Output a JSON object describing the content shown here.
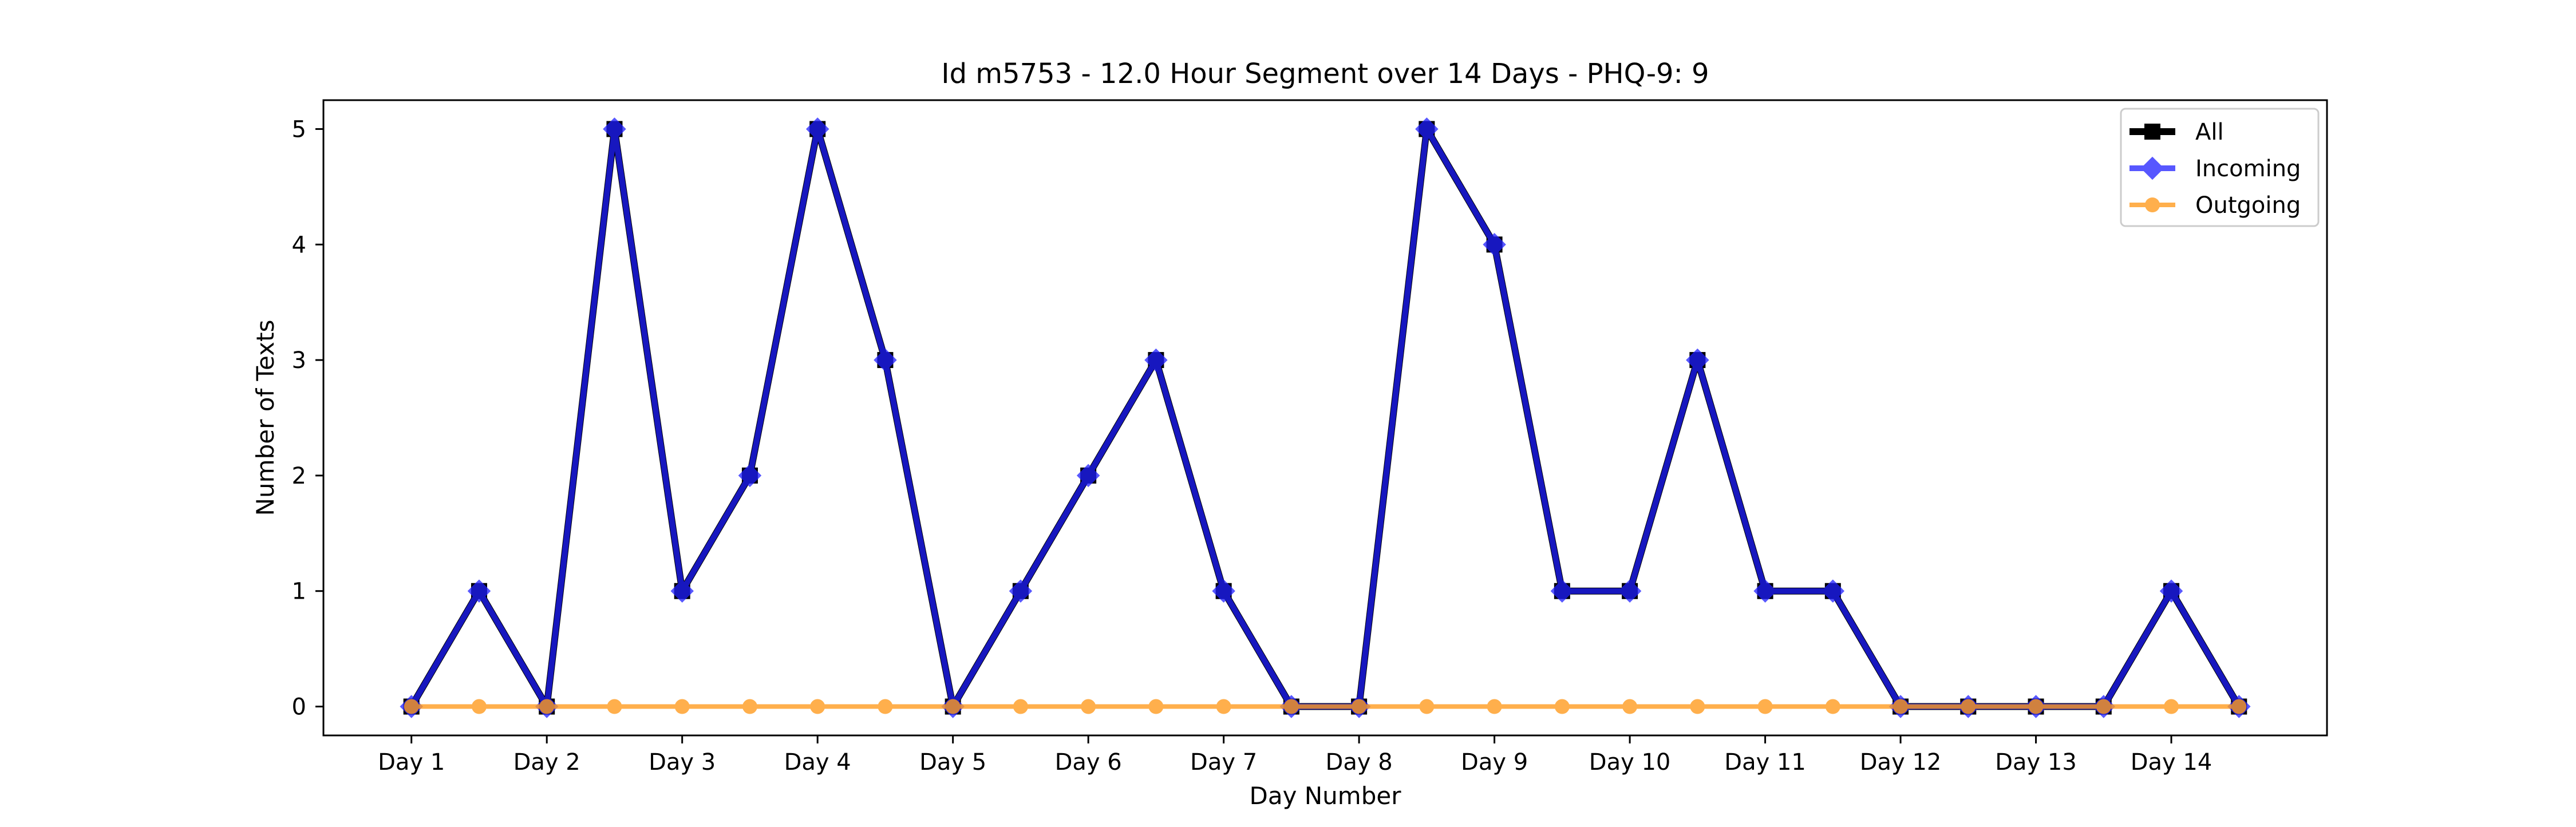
{
  "chart_data": {
    "type": "line",
    "title": "Id m5753 - 12.0 Hour Segment over 14 Days - PHQ-9: 9",
    "xlabel": "Day Number",
    "ylabel": "Number of Texts",
    "categories": [
      "Day 1",
      "Day 2",
      "Day 3",
      "Day 4",
      "Day 5",
      "Day 6",
      "Day 7",
      "Day 8",
      "Day 9",
      "Day 10",
      "Day 11",
      "Day 12",
      "Day 13",
      "Day 14"
    ],
    "x": [
      1,
      1.5,
      2,
      2.5,
      3,
      3.5,
      4,
      4.5,
      5,
      5.5,
      6,
      6.5,
      7,
      7.5,
      8,
      8.5,
      9,
      9.5,
      10,
      10.5,
      11,
      11.5,
      12,
      12.5,
      13,
      13.5,
      14,
      14.5
    ],
    "xlim": [
      0.35,
      15.15
    ],
    "ylim": [
      -0.25,
      5.25
    ],
    "yticks": [
      0,
      1,
      2,
      3,
      4,
      5
    ],
    "grid": false,
    "legend_position": "top-right",
    "series": [
      {
        "name": "All",
        "color": "#000000",
        "marker": "square",
        "values": [
          0,
          1,
          0,
          5,
          1,
          2,
          5,
          3,
          0,
          1,
          2,
          3,
          1,
          0,
          0,
          5,
          4,
          1,
          1,
          3,
          1,
          1,
          0,
          0,
          0,
          0,
          1,
          0
        ]
      },
      {
        "name": "Incoming",
        "color": "#1f1fff",
        "marker": "diamond",
        "values": [
          0,
          1,
          0,
          5,
          1,
          2,
          5,
          3,
          0,
          1,
          2,
          3,
          1,
          0,
          0,
          5,
          4,
          1,
          1,
          3,
          1,
          1,
          0,
          0,
          0,
          0,
          1,
          0
        ]
      },
      {
        "name": "Outgoing",
        "color": "#ff9c20",
        "marker": "circle",
        "values": [
          0,
          0,
          0,
          0,
          0,
          0,
          0,
          0,
          0,
          0,
          0,
          0,
          0,
          0,
          0,
          0,
          0,
          0,
          0,
          0,
          0,
          0,
          0,
          0,
          0,
          0,
          0,
          0
        ]
      }
    ]
  }
}
